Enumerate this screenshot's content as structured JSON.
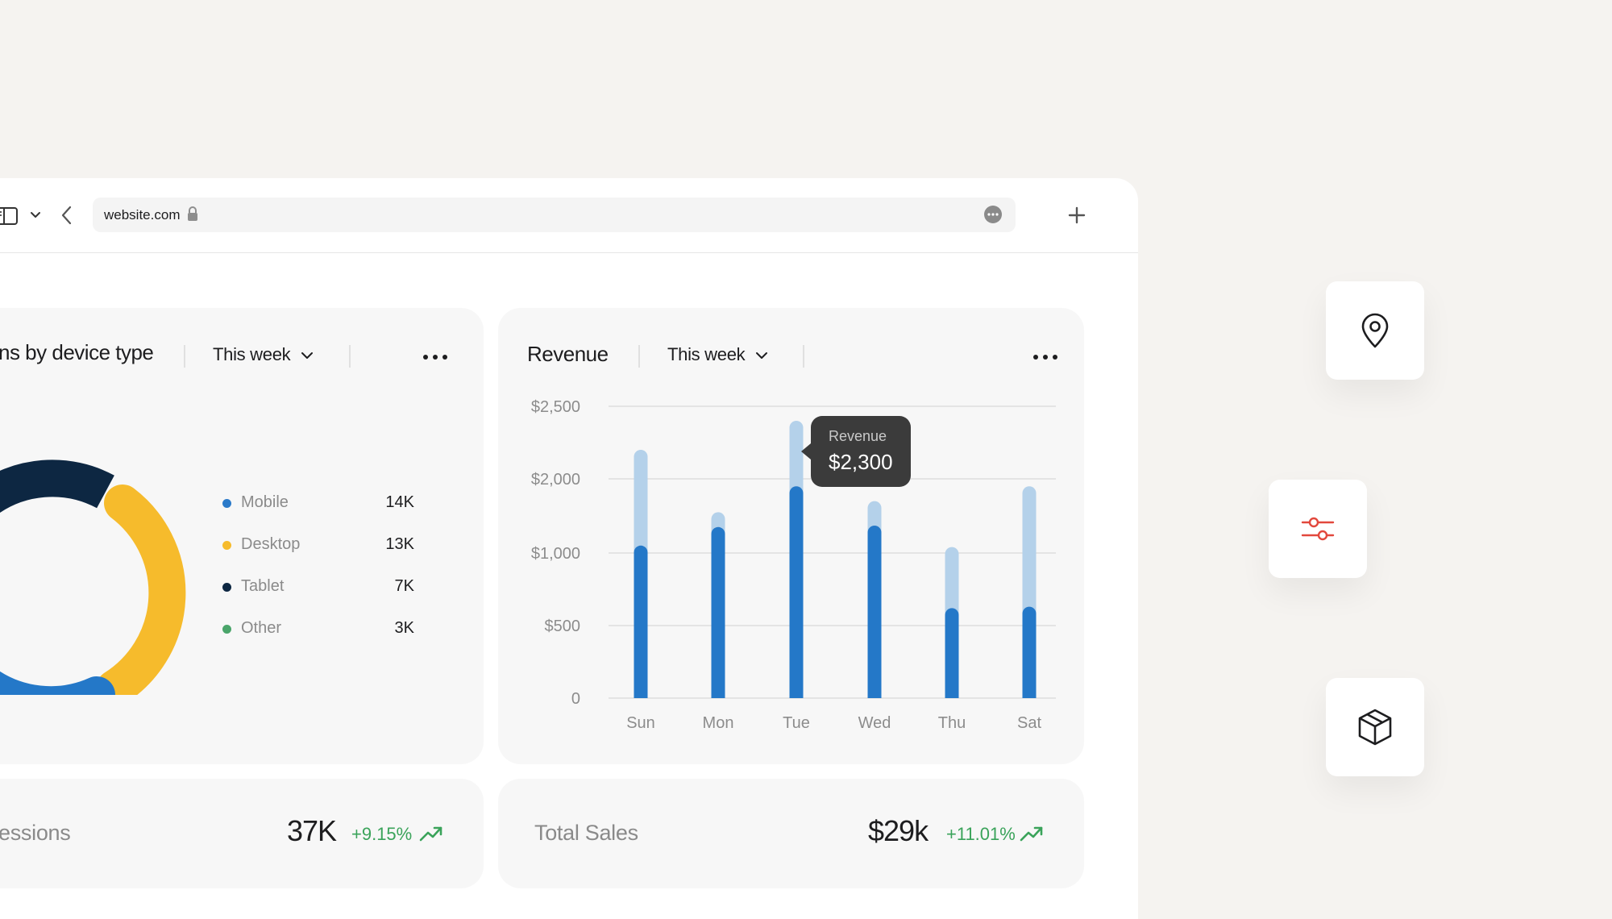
{
  "browser": {
    "url": "website.com"
  },
  "devices_card": {
    "title": "ns by device type",
    "period": "This week",
    "legend": [
      {
        "label": "Mobile",
        "value": "14K",
        "color": "#2b7ac9"
      },
      {
        "label": "Desktop",
        "value": "13K",
        "color": "#f6bb2c"
      },
      {
        "label": "Tablet",
        "value": "7K",
        "color": "#0d2742"
      },
      {
        "label": "Other",
        "value": "3K",
        "color": "#4aa56a"
      }
    ]
  },
  "revenue_card": {
    "title": "Revenue",
    "period": "This week",
    "tooltip": {
      "title": "Revenue",
      "value": "$2,300"
    }
  },
  "chart_data": {
    "type": "bar",
    "categories": [
      "Sun",
      "Mon",
      "Tue",
      "Wed",
      "Thu",
      "Sat"
    ],
    "y_tick_labels": [
      "0",
      "$500",
      "$1,000",
      "$2,000",
      "$2,500"
    ],
    "series": [
      {
        "values": [
          1100,
          1350,
          1900,
          1370,
          620,
          630
        ],
        "color": "#2478c8"
      },
      {
        "values": [
          2200,
          1550,
          2400,
          1700,
          1080,
          1900
        ],
        "color": "#b4d1ea"
      }
    ]
  },
  "sessions_card": {
    "label": "essions",
    "value": "37K",
    "change": "+9.15%"
  },
  "sales_card": {
    "label": "Total Sales",
    "value": "$29k",
    "change": "+11.01%"
  },
  "tiles": {
    "location_icon": "map-pin-icon",
    "filter_icon": "sliders-icon",
    "package_icon": "package-icon"
  }
}
